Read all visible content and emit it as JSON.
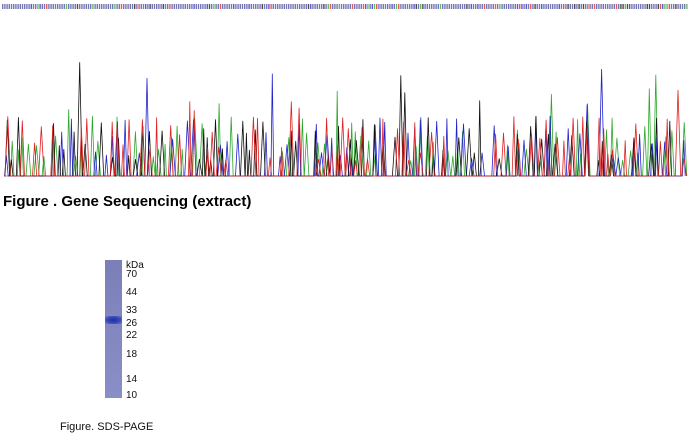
{
  "sequencing": {
    "caption": "Figure . Gene Sequencing (extract)",
    "trace_colors": {
      "A": "#2fa82f",
      "C": "#2222cc",
      "G": "#111111",
      "T": "#dd2222"
    },
    "base_call_color": "#4a4a9a"
  },
  "sds_page": {
    "caption": "Figure. SDS-PAGE",
    "unit": "kDa",
    "markers": [
      "70",
      "44",
      "33",
      "26",
      "22",
      "18",
      "14",
      "10"
    ],
    "band_marker": "26"
  }
}
